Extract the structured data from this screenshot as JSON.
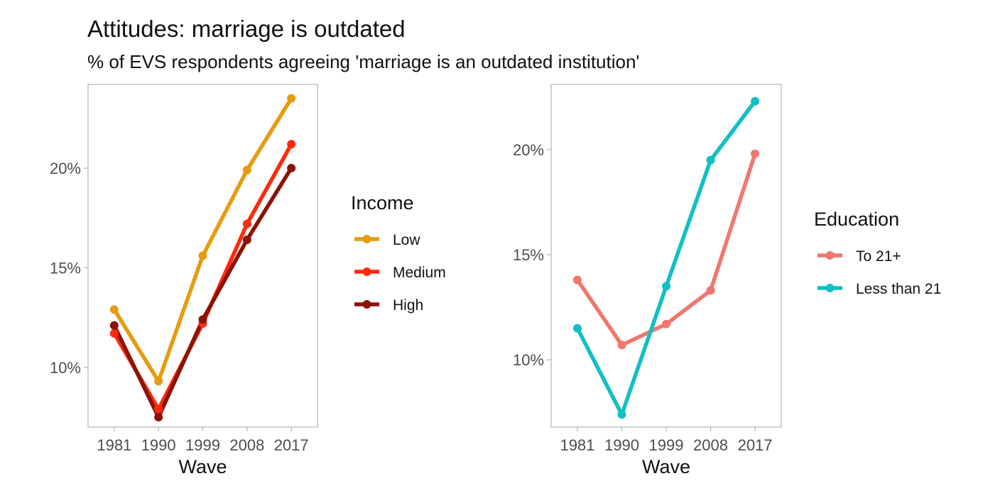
{
  "title": "Attitudes: marriage is outdated",
  "subtitle": "% of EVS respondents agreeing 'marriage is an outdated institution'",
  "chart_data": [
    {
      "type": "line",
      "xlabel": "Wave",
      "ylabel": "",
      "categories": [
        "1981",
        "1990",
        "1999",
        "2008",
        "2017"
      ],
      "ylim": [
        7.0,
        24.2
      ],
      "yticks": [
        10,
        15,
        20
      ],
      "ytick_labels": [
        "10%",
        "15%",
        "20%"
      ],
      "grid": false,
      "legend": {
        "title": "Income",
        "position": "right"
      },
      "series": [
        {
          "name": "Low",
          "color": "#E69C0E",
          "values": [
            12.9,
            9.3,
            15.6,
            19.9,
            23.5
          ]
        },
        {
          "name": "Medium",
          "color": "#FF2A0D",
          "values": [
            11.7,
            7.9,
            12.2,
            17.2,
            21.2
          ]
        },
        {
          "name": "High",
          "color": "#8B1305",
          "values": [
            12.1,
            7.5,
            12.4,
            16.4,
            20.0
          ]
        }
      ]
    },
    {
      "type": "line",
      "xlabel": "Wave",
      "ylabel": "",
      "categories": [
        "1981",
        "1990",
        "1999",
        "2008",
        "2017"
      ],
      "ylim": [
        6.8,
        23.1
      ],
      "yticks": [
        10,
        15,
        20
      ],
      "ytick_labels": [
        "10%",
        "15%",
        "20%"
      ],
      "grid": false,
      "legend": {
        "title": "Education",
        "position": "right"
      },
      "series": [
        {
          "name": "To 21+",
          "color": "#F0776E",
          "values": [
            13.8,
            10.7,
            11.7,
            13.3,
            19.8
          ]
        },
        {
          "name": "Less than 21",
          "color": "#12BFC4",
          "values": [
            11.5,
            7.4,
            13.5,
            19.5,
            22.3
          ]
        }
      ]
    }
  ]
}
